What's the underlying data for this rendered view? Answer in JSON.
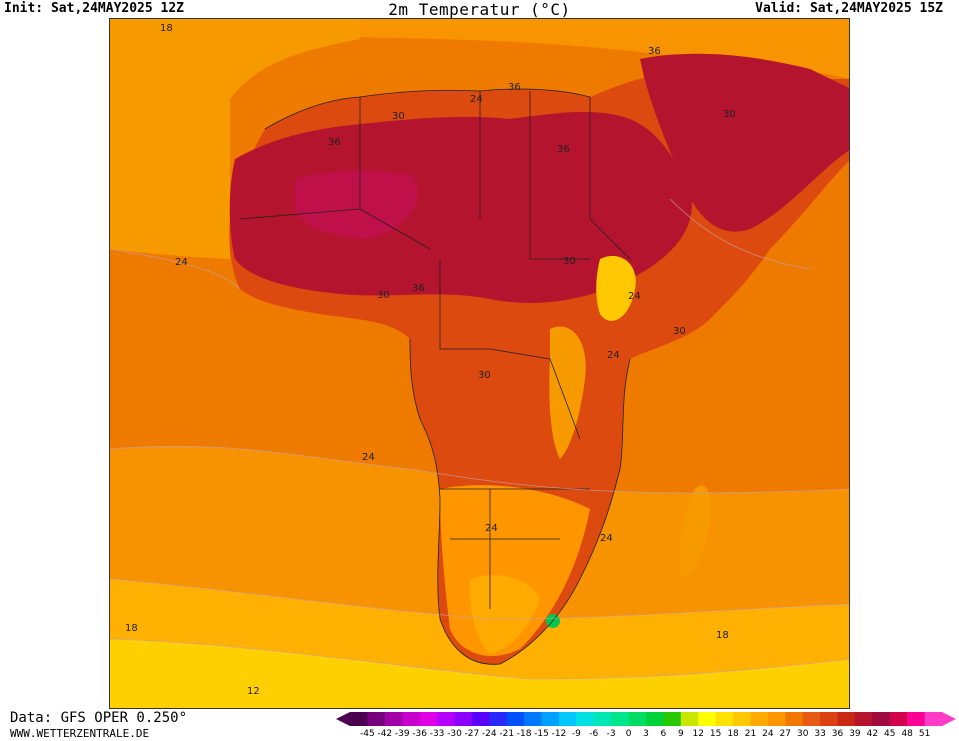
{
  "header": {
    "init": "Init: Sat,24MAY2025 12Z",
    "title": "2m Temperatur (°C)",
    "valid": "Valid: Sat,24MAY2025 15Z"
  },
  "footer": {
    "data_source": "Data: GFS OPER 0.250°",
    "website": "WWW.WETTERZENTRALE.DE"
  },
  "colorbar": {
    "labels": [
      "-45",
      "-42",
      "-39",
      "-36",
      "-33",
      "-30",
      "-27",
      "-24",
      "-21",
      "-18",
      "-15",
      "-12",
      "-9",
      "-6",
      "-3",
      "0",
      "3",
      "6",
      "9",
      "12",
      "15",
      "18",
      "21",
      "24",
      "27",
      "30",
      "33",
      "36",
      "39",
      "42",
      "45",
      "48",
      "51"
    ],
    "colors": [
      "#4b0050",
      "#78007d",
      "#a000a5",
      "#c800cd",
      "#e100e6",
      "#b400ff",
      "#8c00ff",
      "#5a00ff",
      "#2828ff",
      "#0050ff",
      "#0078ff",
      "#00a0ff",
      "#00c8ff",
      "#00e1e1",
      "#00e6b4",
      "#00e68c",
      "#00dc64",
      "#00d23c",
      "#28c800",
      "#c8e600",
      "#ffff00",
      "#ffe100",
      "#ffc800",
      "#ffaa00",
      "#ff9600",
      "#f07800",
      "#e65a14",
      "#dc4114",
      "#c82814",
      "#b4142d",
      "#a00a3c",
      "#d2004b",
      "#ff0096",
      "#ff3cc8"
    ]
  },
  "map": {
    "contour_labels": [
      "18",
      "36",
      "24",
      "30",
      "36",
      "36",
      "30",
      "36",
      "24",
      "30",
      "36",
      "30",
      "24",
      "30",
      "24",
      "24",
      "24",
      "30",
      "24",
      "24",
      "18",
      "18",
      "12"
    ],
    "land_fill": "#c8143c"
  }
}
